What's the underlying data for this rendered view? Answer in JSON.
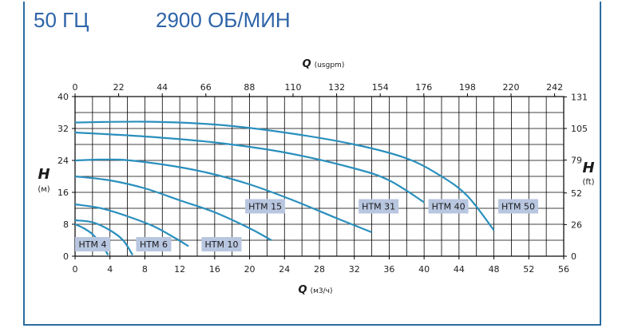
{
  "header": {
    "frequency": "50 ГЦ",
    "speed": "2900 ОБ/МИН"
  },
  "colors": {
    "frame": "#2b6c9e",
    "header_text": "#2e64a8",
    "curve": "#2a8fbd",
    "label_box": "#b8c6e0",
    "grid": "#000000"
  },
  "chart_data": {
    "type": "line",
    "top_axis": {
      "symbol": "Q",
      "unit": "(usgpm)",
      "ticks": [
        "0",
        "22",
        "44",
        "66",
        "88",
        "110",
        "132",
        "154",
        "176",
        "198",
        "220",
        "242"
      ]
    },
    "bottom_axis": {
      "symbol": "Q",
      "unit": "(м3/ч)",
      "ticks": [
        "0",
        "4",
        "8",
        "12",
        "16",
        "20",
        "24",
        "28",
        "32",
        "36",
        "40",
        "44",
        "48",
        "52",
        "56"
      ],
      "range": [
        0,
        56
      ]
    },
    "left_axis": {
      "symbol": "H",
      "unit": "(м)",
      "ticks": [
        "0",
        "8",
        "16",
        "24",
        "32",
        "40"
      ],
      "range": [
        0,
        40
      ]
    },
    "right_axis": {
      "symbol": "H",
      "unit": "(ft)",
      "ticks": [
        "0",
        "26",
        "52",
        "79",
        "105",
        "131"
      ]
    },
    "grid": true,
    "series": [
      {
        "name": "HTM 4",
        "x": [
          0,
          1,
          2,
          3,
          3.8
        ],
        "y": [
          8,
          7,
          5.5,
          3,
          0.3
        ]
      },
      {
        "name": "HTM 6",
        "x": [
          0,
          2,
          4,
          5.5,
          6.6
        ],
        "y": [
          9,
          8.5,
          6.5,
          4,
          0.3
        ]
      },
      {
        "name": "HTM 10",
        "x": [
          0,
          3,
          6,
          9,
          11.5,
          13
        ],
        "y": [
          13,
          12,
          10,
          7.5,
          4.5,
          2.5
        ]
      },
      {
        "name": "HTM 15",
        "x": [
          0,
          4,
          8,
          12,
          16,
          20,
          22.5
        ],
        "y": [
          20,
          19,
          17,
          14,
          11,
          7,
          4
        ]
      },
      {
        "name": "HTM 31",
        "x": [
          0,
          5,
          10,
          15,
          20,
          25,
          30,
          34
        ],
        "y": [
          24,
          24.2,
          23,
          21,
          18,
          14,
          9.5,
          6
        ]
      },
      {
        "name": "HTM 40",
        "x": [
          0,
          8,
          16,
          24,
          32,
          36,
          40
        ],
        "y": [
          31,
          30,
          28.5,
          26,
          22,
          19,
          13.5
        ]
      },
      {
        "name": "HTM 50",
        "x": [
          0,
          8,
          16,
          24,
          32,
          38,
          42,
          45,
          48
        ],
        "y": [
          33.5,
          33.7,
          33,
          31,
          28,
          24.5,
          20,
          15,
          6.5
        ]
      }
    ],
    "labels": [
      {
        "text": "HTM 4",
        "x": 0,
        "y": 3
      },
      {
        "text": "HTM 6",
        "x": 7,
        "y": 3
      },
      {
        "text": "HTM 10",
        "x": 14.5,
        "y": 3
      },
      {
        "text": "HTM 15",
        "x": 19.5,
        "y": 12.5
      },
      {
        "text": "HTM 31",
        "x": 32.5,
        "y": 12.5
      },
      {
        "text": "HTM 40",
        "x": 40.5,
        "y": 12.5
      },
      {
        "text": "HTM 50",
        "x": 48.5,
        "y": 12.5
      }
    ]
  }
}
